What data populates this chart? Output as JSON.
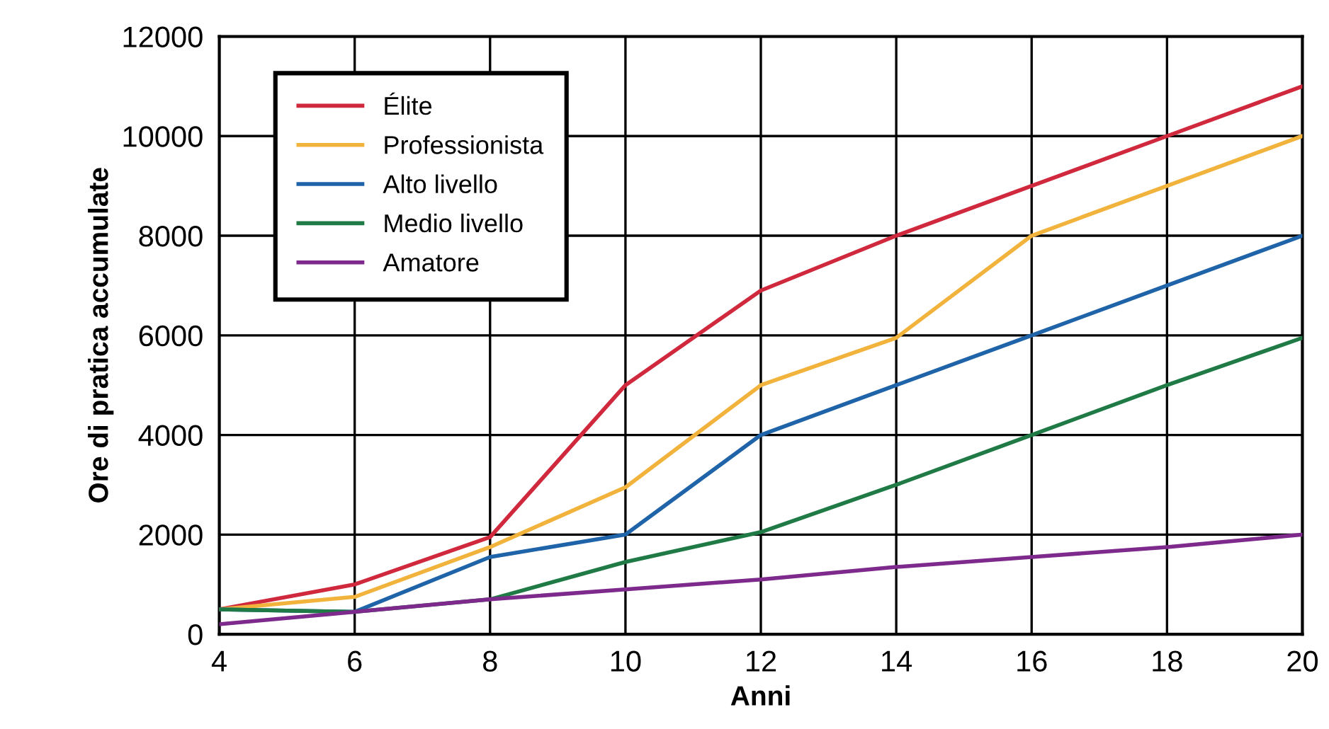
{
  "chart_data": {
    "type": "line",
    "xlabel": "Anni",
    "ylabel": "Ore di pratica accumulate",
    "x": [
      4,
      6,
      8,
      10,
      12,
      14,
      16,
      18,
      20
    ],
    "series": [
      {
        "name": "Élite",
        "color": "#d0283c",
        "values": [
          500,
          1000,
          1950,
          5000,
          6900,
          8000,
          9000,
          10000,
          11000
        ]
      },
      {
        "name": "Professionista",
        "color": "#f2b33d",
        "values": [
          500,
          750,
          1750,
          2950,
          5000,
          5950,
          8000,
          9000,
          10000
        ]
      },
      {
        "name": "Alto livello",
        "color": "#1f63a8",
        "values": [
          500,
          450,
          1550,
          2000,
          4000,
          5000,
          6000,
          7000,
          8000
        ]
      },
      {
        "name": "Medio livello",
        "color": "#1f7a45",
        "values": [
          500,
          450,
          700,
          1450,
          2050,
          3000,
          4000,
          5000,
          5950
        ]
      },
      {
        "name": "Amatore",
        "color": "#7d2a8c",
        "values": [
          200,
          450,
          700,
          900,
          1100,
          1350,
          1550,
          1750,
          2000
        ]
      }
    ],
    "xlim": [
      4,
      20
    ],
    "xticks": [
      4,
      6,
      8,
      10,
      12,
      14,
      16,
      18,
      20
    ],
    "ylim": [
      0,
      12000
    ],
    "yticks": [
      0,
      2000,
      4000,
      6000,
      8000,
      10000,
      12000
    ],
    "grid": true,
    "legend": "top left",
    "marker": "none",
    "line_style": "solid"
  }
}
